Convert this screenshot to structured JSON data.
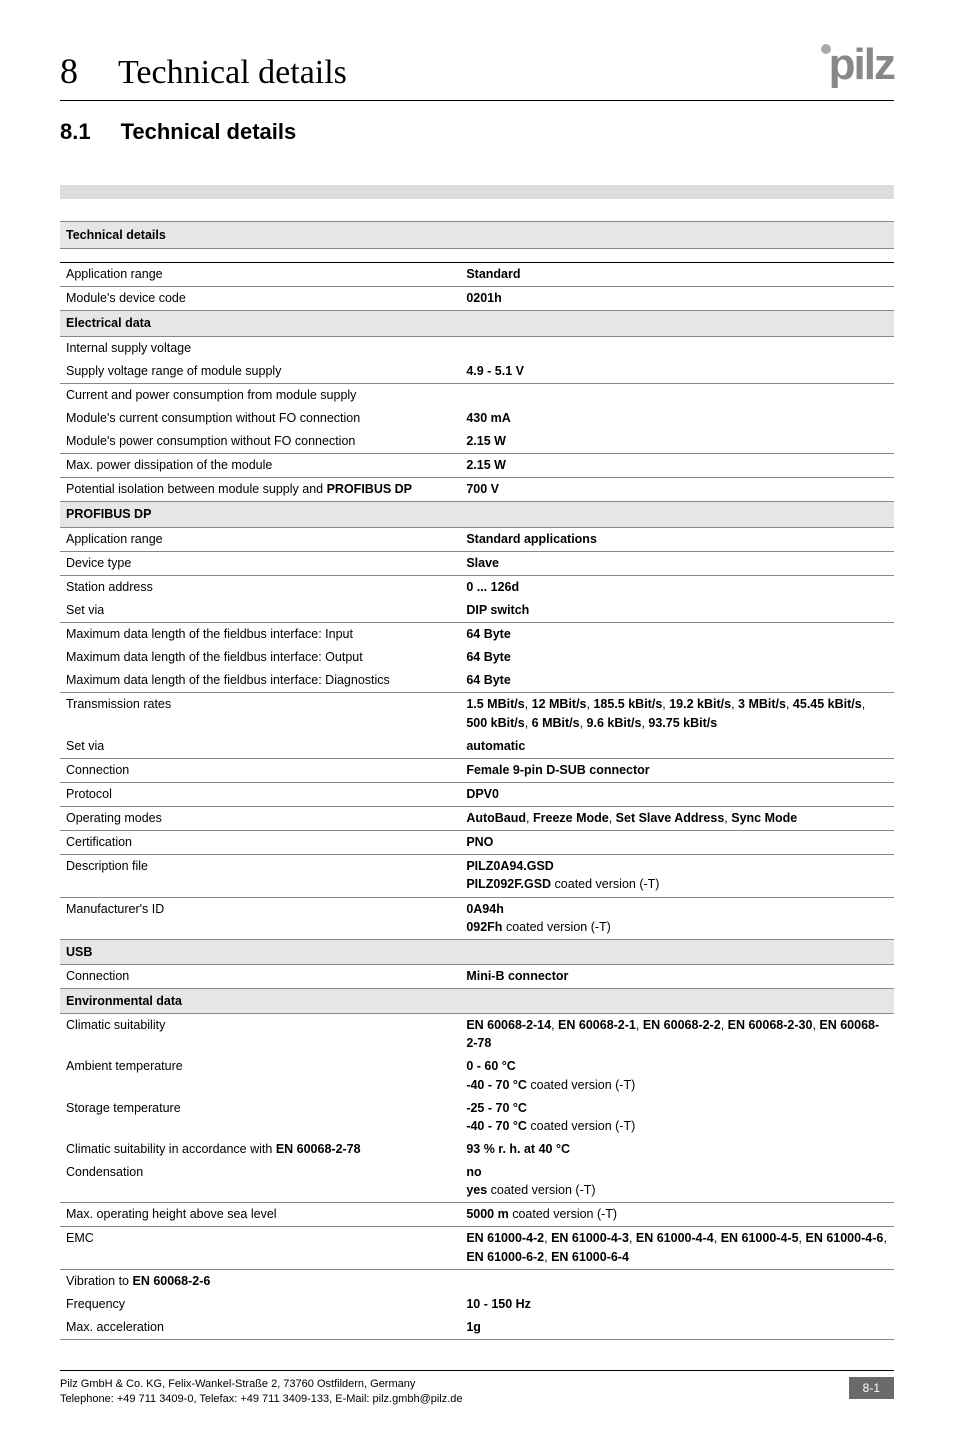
{
  "logo_text": "pilz",
  "chapter": {
    "num": "8",
    "title": "Technical details"
  },
  "section": {
    "num": "8.1",
    "title": "Technical details"
  },
  "table_title": "Technical details",
  "rows": [
    {
      "type": "data",
      "label": "Application range",
      "value": "Standard",
      "top_strong": true
    },
    {
      "type": "data",
      "label": "Module's device code",
      "value": "0201h"
    },
    {
      "type": "section",
      "label": "Electrical data"
    },
    {
      "type": "data",
      "label": "Internal supply voltage",
      "value": ""
    },
    {
      "type": "data",
      "label": "Supply voltage range of module supply",
      "value": "4.9 - 5.1 V",
      "noborder": true
    },
    {
      "type": "data",
      "label": "Current and power consumption from module supply",
      "value": ""
    },
    {
      "type": "data",
      "label": "Module's current consumption without FO connection",
      "value": "430 mA",
      "noborder": true
    },
    {
      "type": "data",
      "label": "Module's power consumption without FO connection",
      "value": "2.15 W",
      "noborder": true
    },
    {
      "type": "data",
      "label": "Max. power dissipation of the module",
      "value": "2.15 W"
    },
    {
      "type": "data",
      "label": "Potential isolation between module supply and <b>PROFIBUS DP</b>",
      "value": "700 V"
    },
    {
      "type": "section",
      "label": "PROFIBUS DP"
    },
    {
      "type": "data",
      "label": "Application range",
      "value": "Standard applications"
    },
    {
      "type": "data",
      "label": "Device type",
      "value": "Slave"
    },
    {
      "type": "data",
      "label": "Station address",
      "value": "0 ... 126d"
    },
    {
      "type": "data",
      "label": "Set via",
      "value": "DIP switch",
      "noborder": true
    },
    {
      "type": "data",
      "label": "Maximum data length of the fieldbus interface: Input",
      "value": "64 Byte"
    },
    {
      "type": "data",
      "label": "Maximum data length of the fieldbus interface: Output",
      "value": "64 Byte",
      "noborder": true
    },
    {
      "type": "data",
      "label": "Maximum data length of the fieldbus interface: Diagnostics",
      "value": "64 Byte",
      "noborder": true
    },
    {
      "type": "data",
      "label": "Transmission rates",
      "value": "1.5 MBit/s<span class='light'>,</span> 12 MBit/s<span class='light'>,</span> 185.5 kBit/s<span class='light'>,</span> 19.2 kBit/s<span class='light'>,</span> 3 MBit/s<span class='light'>,</span> 45.45 kBit/s<span class='light'>,</span> 500 kBit/s<span class='light'>,</span> 6 MBit/s<span class='light'>,</span> 9.6 kBit/s<span class='light'>,</span> 93.75 kBit/s"
    },
    {
      "type": "data",
      "label": "Set via",
      "value": "automatic",
      "noborder": true
    },
    {
      "type": "data",
      "label": "Connection",
      "value": "Female 9-pin D-SUB connector"
    },
    {
      "type": "data",
      "label": "Protocol",
      "value": "DPV0"
    },
    {
      "type": "data",
      "label": "Operating modes",
      "value": "AutoBaud<span class='light'>,</span> Freeze Mode<span class='light'>,</span> Set Slave Address<span class='light'>,</span> Sync Mode"
    },
    {
      "type": "data",
      "label": "Certification",
      "value": "PNO"
    },
    {
      "type": "data",
      "label": "Description file",
      "value": "PILZ0A94.GSD<br><b>PILZ092F.GSD</b> <span class='light'>coated version (-T)</span>"
    },
    {
      "type": "data",
      "label": "Manufacturer's ID",
      "value": "0A94h<br><b>092Fh</b> <span class='light'>coated version (-T)</span>"
    },
    {
      "type": "section",
      "label": "USB"
    },
    {
      "type": "data",
      "label": "Connection",
      "value": "Mini-B connector"
    },
    {
      "type": "section",
      "label": "Environmental data"
    },
    {
      "type": "data",
      "label": "Climatic suitability",
      "value": "EN 60068-2-14<span class='light'>,</span> EN 60068-2-1<span class='light'>,</span> EN 60068-2-2<span class='light'>,</span> EN 60068-2-30<span class='light'>,</span> EN 60068-2-78"
    },
    {
      "type": "data",
      "label": "Ambient temperature",
      "value": "0 - 60 °C<br><b>-40 - 70 °C</b> <span class='light'>coated version (-T)</span>",
      "noborder": true
    },
    {
      "type": "data",
      "label": "Storage temperature",
      "value": "-25 - 70 °C<br><b>-40 - 70 °C</b> <span class='light'>coated version (-T)</span>",
      "noborder": true
    },
    {
      "type": "data",
      "label": "Climatic suitability in accordance with <b>EN 60068-2-78</b>",
      "value": "93 % r. h. at 40 °C",
      "noborder": true
    },
    {
      "type": "data",
      "label": "Condensation",
      "value": "no<br><b>yes</b> <span class='light'>coated version (-T)</span>",
      "noborder": true
    },
    {
      "type": "data",
      "label": "Max. operating height above sea level",
      "value": "<b>5000 m</b> <span class='light'>coated version (-T)</span>"
    },
    {
      "type": "data",
      "label": "EMC",
      "value": "EN 61000-4-2<span class='light'>,</span> EN 61000-4-3<span class='light'>,</span> EN 61000-4-4<span class='light'>,</span> EN 61000-4-5<span class='light'>,</span> EN 61000-4-6<span class='light'>,</span> EN 61000-6-2<span class='light'>,</span> EN 61000-6-4"
    },
    {
      "type": "data",
      "label": "Vibration to <b>EN 60068-2-6</b>",
      "value": ""
    },
    {
      "type": "data",
      "label": "Frequency",
      "value": "10 - 150 Hz",
      "noborder": true
    },
    {
      "type": "data",
      "label": "Max. acceleration",
      "value": "1g",
      "noborder": true,
      "bottom_border": true
    }
  ],
  "footer": {
    "line1": "Pilz GmbH & Co. KG, Felix-Wankel-Straße 2, 73760 Ostfildern, Germany",
    "line2": "Telephone: +49 711 3409-0, Telefax: +49 711 3409-133, E-Mail: pilz.gmbh@pilz.de",
    "page": "8-1"
  },
  "colors": {
    "section_bg": "#e6e6e6",
    "border": "#888888",
    "footer_badge_bg": "#6a6a6a"
  }
}
